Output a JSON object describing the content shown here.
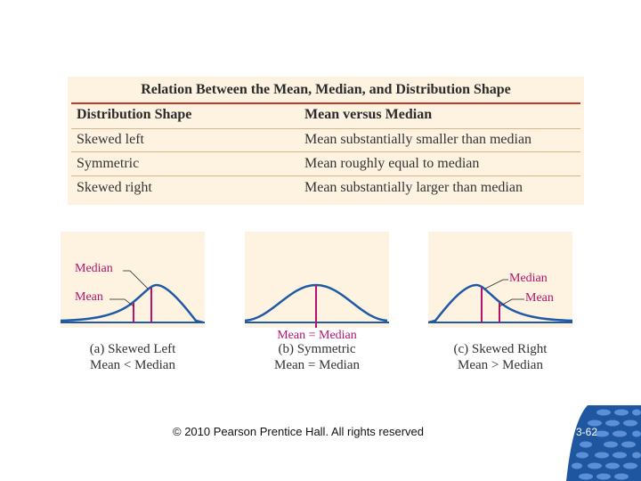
{
  "table": {
    "title": "Relation Between the Mean, Median, and Distribution Shape",
    "headers": [
      "Distribution Shape",
      "Mean versus Median"
    ],
    "rows": [
      [
        "Skewed left",
        "Mean substantially smaller than median"
      ],
      [
        "Symmetric",
        "Mean roughly equal to median"
      ],
      [
        "Skewed right",
        "Mean substantially larger than median"
      ]
    ]
  },
  "panels": [
    {
      "caption_line1": "(a) Skewed Left",
      "caption_line2": "Mean < Median",
      "annotations": {
        "median": "Median",
        "mean": "Mean"
      }
    },
    {
      "caption_line1": "(b) Symmetric",
      "caption_line2": "Mean = Median",
      "annotations": {
        "combined": "Mean = Median"
      }
    },
    {
      "caption_line1": "(c) Skewed Right",
      "caption_line2": "Mean > Median",
      "annotations": {
        "median": "Median",
        "mean": "Mean"
      }
    }
  ],
  "footer": {
    "copyright": "© 2010 Pearson Prentice Hall. All rights reserved",
    "slide_number": "3-62"
  },
  "colors": {
    "table_bg": "#fdf3e0",
    "rule": "#c0392b",
    "curve": "#1f5aa6",
    "marker": "#b5136e",
    "deco": "#1e56a0"
  }
}
